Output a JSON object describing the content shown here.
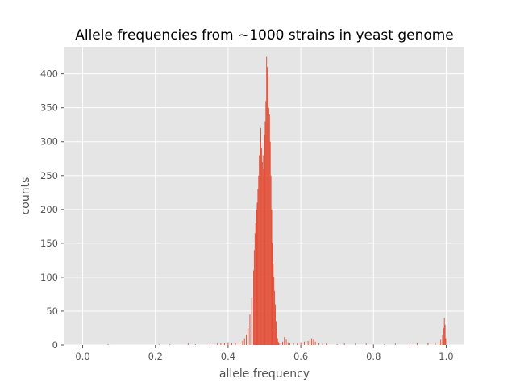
{
  "chart_data": {
    "type": "bar",
    "title": "Allele frequencies from ~1000 strains in yeast genome",
    "xlabel": "allele frequency",
    "ylabel": "counts",
    "xlim": [
      -0.05,
      1.05
    ],
    "ylim": [
      0,
      440
    ],
    "grid": true,
    "background_color": "#e5e5e5",
    "bar_color": "#e24a33",
    "grid_color": "#ffffff",
    "xticks": [
      0.0,
      0.2,
      0.4,
      0.6,
      0.8,
      1.0
    ],
    "xtick_labels": [
      "0.0",
      "0.2",
      "0.4",
      "0.6",
      "0.8",
      "1.0"
    ],
    "yticks": [
      0,
      50,
      100,
      150,
      200,
      250,
      300,
      350,
      400
    ],
    "ytick_labels": [
      "0",
      "50",
      "100",
      "150",
      "200",
      "250",
      "300",
      "350",
      "400"
    ],
    "bin_width": 0.002,
    "x": [
      0.07,
      0.21,
      0.24,
      0.29,
      0.31,
      0.35,
      0.37,
      0.38,
      0.39,
      0.4,
      0.41,
      0.42,
      0.43,
      0.44,
      0.445,
      0.45,
      0.455,
      0.46,
      0.465,
      0.47,
      0.472,
      0.474,
      0.476,
      0.478,
      0.48,
      0.482,
      0.484,
      0.486,
      0.488,
      0.49,
      0.492,
      0.494,
      0.496,
      0.498,
      0.5,
      0.502,
      0.504,
      0.506,
      0.508,
      0.51,
      0.512,
      0.514,
      0.516,
      0.518,
      0.52,
      0.522,
      0.524,
      0.526,
      0.528,
      0.53,
      0.532,
      0.534,
      0.536,
      0.538,
      0.54,
      0.545,
      0.55,
      0.555,
      0.56,
      0.565,
      0.57,
      0.58,
      0.59,
      0.6,
      0.61,
      0.62,
      0.625,
      0.63,
      0.635,
      0.64,
      0.65,
      0.66,
      0.67,
      0.7,
      0.72,
      0.75,
      0.78,
      0.8,
      0.83,
      0.86,
      0.9,
      0.92,
      0.95,
      0.97,
      0.98,
      0.985,
      0.99,
      0.993,
      0.995,
      0.997,
      0.999
    ],
    "values": [
      1,
      1,
      1,
      2,
      1,
      2,
      2,
      3,
      3,
      4,
      3,
      3,
      4,
      6,
      10,
      15,
      25,
      45,
      70,
      110,
      140,
      165,
      180,
      200,
      210,
      230,
      250,
      280,
      300,
      320,
      290,
      270,
      280,
      260,
      310,
      330,
      360,
      425,
      410,
      400,
      350,
      340,
      300,
      250,
      200,
      150,
      120,
      100,
      80,
      60,
      35,
      20,
      10,
      5,
      3,
      3,
      5,
      12,
      8,
      4,
      3,
      3,
      2,
      4,
      5,
      6,
      8,
      10,
      8,
      5,
      3,
      2,
      2,
      1,
      2,
      2,
      2,
      1,
      1,
      2,
      2,
      3,
      3,
      4,
      5,
      8,
      15,
      25,
      40,
      30,
      10
    ]
  }
}
